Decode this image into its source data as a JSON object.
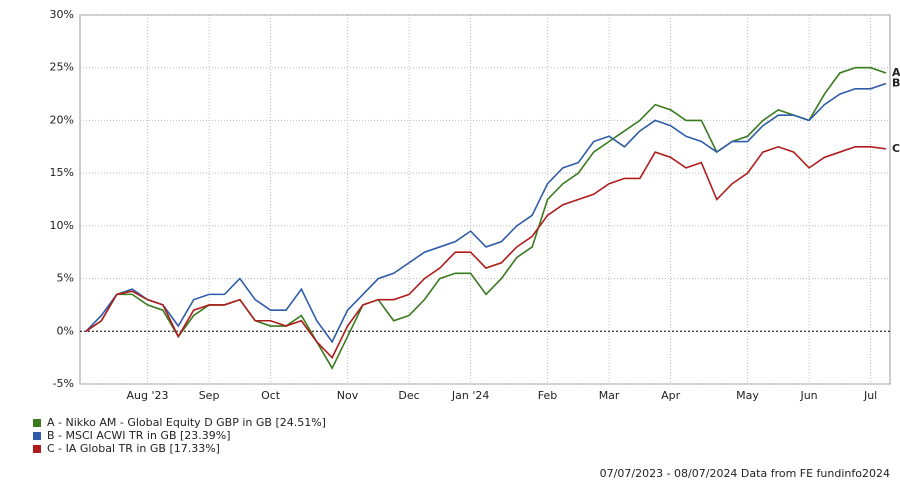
{
  "chart_data": {
    "type": "line",
    "categories": [
      null,
      null,
      null,
      null,
      "Aug '23",
      null,
      null,
      null,
      "Sep",
      null,
      null,
      null,
      "Oct",
      null,
      null,
      null,
      null,
      "Nov",
      null,
      null,
      null,
      "Dec",
      null,
      null,
      null,
      "Jan '24",
      null,
      null,
      null,
      null,
      "Feb",
      null,
      null,
      null,
      "Mar",
      null,
      null,
      null,
      "Apr",
      null,
      null,
      null,
      null,
      "May",
      null,
      null,
      null,
      "Jun",
      null,
      null,
      null,
      "Jul",
      null
    ],
    "series": [
      {
        "name": "A - Nikko AM - Global Equity D GBP in GB [24.51%]",
        "end_label": "A",
        "color": "#3a7a1e",
        "values": [
          0,
          1,
          3.5,
          3.5,
          2.5,
          2,
          -0.5,
          1.5,
          2.5,
          2.5,
          3,
          1,
          0.5,
          0.5,
          1.5,
          -1,
          -3.5,
          -0.5,
          2.5,
          3,
          1,
          1.5,
          3,
          5,
          5.5,
          5.5,
          3.5,
          5,
          7,
          8,
          12.5,
          14,
          15,
          17,
          18,
          19,
          20,
          21.5,
          21,
          20,
          20,
          17,
          18,
          18.5,
          20,
          21,
          20.5,
          20,
          22.5,
          24.5,
          25,
          25,
          24.5
        ]
      },
      {
        "name": "B - MSCI ACWI TR in GB [23.39%]",
        "end_label": "B",
        "color": "#2f5ca8",
        "values": [
          0,
          1.5,
          3.5,
          4,
          3,
          2.5,
          0.5,
          3,
          3.5,
          3.5,
          5,
          3,
          2,
          2,
          4,
          1,
          -1,
          2,
          3.5,
          5,
          5.5,
          6.5,
          7.5,
          8,
          8.5,
          9.5,
          8,
          8.5,
          10,
          11,
          14,
          15.5,
          16,
          18,
          18.5,
          17.5,
          19,
          20,
          19.5,
          18.5,
          18,
          17,
          18,
          18,
          19.5,
          20.5,
          20.5,
          20,
          21.5,
          22.5,
          23,
          23,
          23.5
        ]
      },
      {
        "name": "C - IA Global TR in GB [17.33%]",
        "end_label": "C",
        "color": "#b01c1c",
        "values": [
          0,
          1,
          3.5,
          3.8,
          3,
          2.5,
          -0.5,
          2,
          2.5,
          2.5,
          3,
          1,
          1,
          0.5,
          1,
          -1,
          -2.5,
          0.5,
          2.5,
          3,
          3,
          3.5,
          5,
          6,
          7.5,
          7.5,
          6,
          6.5,
          8,
          9,
          11,
          12,
          12.5,
          13,
          14,
          14.5,
          14.5,
          17,
          16.5,
          15.5,
          16,
          12.5,
          14,
          15,
          17,
          17.5,
          17,
          15.5,
          16.5,
          17,
          17.5,
          17.5,
          17.3
        ]
      }
    ],
    "ylim": [
      -5,
      30
    ],
    "yticks": [
      {
        "value": -5,
        "label": "-5%"
      },
      {
        "value": 0,
        "label": "0%"
      },
      {
        "value": 5,
        "label": "5%"
      },
      {
        "value": 10,
        "label": "10%"
      },
      {
        "value": 15,
        "label": "15%"
      },
      {
        "value": 20,
        "label": "20%"
      },
      {
        "value": 25,
        "label": "25%"
      },
      {
        "value": 30,
        "label": "30%"
      }
    ],
    "grid": true,
    "footer": "07/07/2023 - 08/07/2024 Data from FE fundinfo2024"
  }
}
